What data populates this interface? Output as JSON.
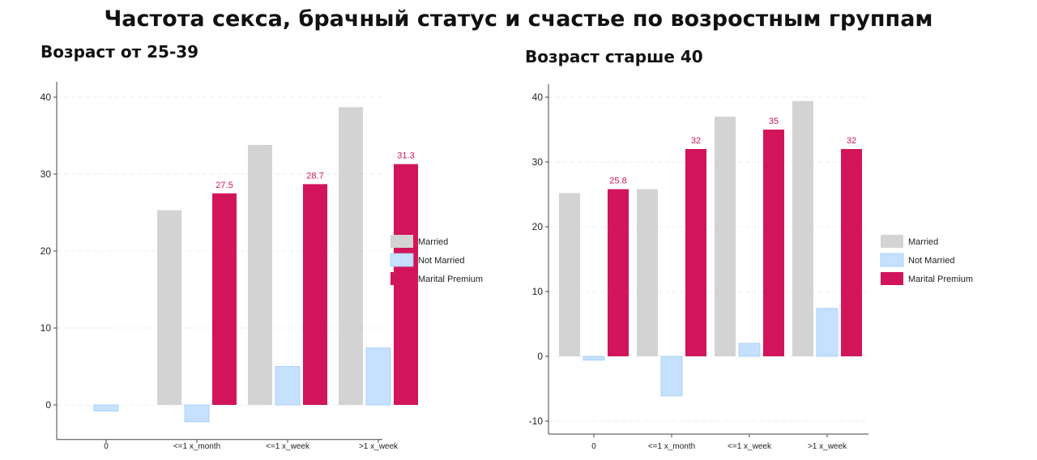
{
  "main_title": "Частота секса, брачный статус и счастье по возростным группам",
  "colors": {
    "Married": "#d3d3d3",
    "Not Married": "#c6e0ff",
    "Not Married Stroke": "#9ecbf7",
    "Marital Premium": "#d2155a",
    "label": "#d2155a"
  },
  "chart_data": [
    {
      "type": "bar",
      "title": "Возраст от 25-39",
      "categories": [
        "0",
        "<=1 x_month",
        "<=1 x_week",
        ">1 x_week"
      ],
      "series": [
        {
          "name": "Married",
          "values": [
            null,
            25.3,
            33.8,
            38.7
          ]
        },
        {
          "name": "Not Married",
          "values": [
            -0.8,
            -2.2,
            5.0,
            7.4
          ]
        },
        {
          "name": "Marital Premium",
          "values": [
            null,
            27.5,
            28.7,
            31.3
          ]
        }
      ],
      "data_labels": [
        null,
        "27.5",
        "28.7",
        "31.3"
      ],
      "yticks": [
        0,
        10,
        20,
        30,
        40
      ],
      "ylim": [
        -4.5,
        42
      ],
      "grid": true,
      "legend": [
        "Married",
        "Not Married",
        "Marital Premium"
      ],
      "legend_position": "right"
    },
    {
      "type": "bar",
      "title": "Возраст старше 40",
      "categories": [
        "0",
        "<=1 x_month",
        "<=1 x_week",
        ">1 x_week"
      ],
      "series": [
        {
          "name": "Married",
          "values": [
            25.2,
            25.8,
            37.0,
            39.4
          ]
        },
        {
          "name": "Not Married",
          "values": [
            -0.6,
            -6.1,
            2.0,
            7.4
          ]
        },
        {
          "name": "Marital Premium",
          "values": [
            25.8,
            32,
            35,
            32
          ]
        }
      ],
      "data_labels": [
        "25.8",
        "32",
        "35",
        "32"
      ],
      "yticks": [
        -10,
        0,
        10,
        20,
        30,
        40
      ],
      "ylim": [
        -12,
        42
      ],
      "grid": true,
      "legend": [
        "Married",
        "Not Married",
        "Marital Premium"
      ],
      "legend_position": "right"
    }
  ]
}
